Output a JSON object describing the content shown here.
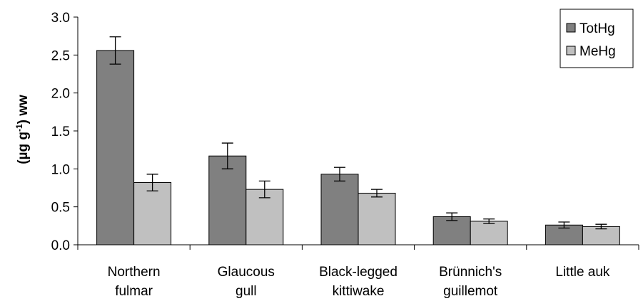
{
  "chart_data": {
    "type": "bar",
    "title": "",
    "xlabel": "",
    "ylabel": {
      "main": "(µg g",
      "sup": "-1",
      "tail": ") ww"
    },
    "ylim": [
      0,
      3.0
    ],
    "yticks": [
      "0.0",
      "0.5",
      "1.0",
      "1.5",
      "2.0",
      "2.5",
      "3.0"
    ],
    "ytick_values": [
      0,
      0.5,
      1.0,
      1.5,
      2.0,
      2.5,
      3.0
    ],
    "categories": [
      [
        "Northern",
        "fulmar"
      ],
      [
        "Glaucous",
        "gull"
      ],
      [
        "Black-legged",
        "kittiwake"
      ],
      [
        "Brünnich's",
        "guillemot"
      ],
      [
        "Little auk"
      ]
    ],
    "series": [
      {
        "name": "TotHg",
        "color": "#808080",
        "values": [
          2.56,
          1.17,
          0.93,
          0.37,
          0.26
        ],
        "errors": [
          0.18,
          0.17,
          0.09,
          0.05,
          0.04
        ]
      },
      {
        "name": "MeHg",
        "color": "#c0c0c0",
        "values": [
          0.82,
          0.73,
          0.68,
          0.31,
          0.24
        ],
        "errors": [
          0.11,
          0.11,
          0.05,
          0.03,
          0.03
        ]
      }
    ],
    "legend": "top-right",
    "grid": false
  }
}
